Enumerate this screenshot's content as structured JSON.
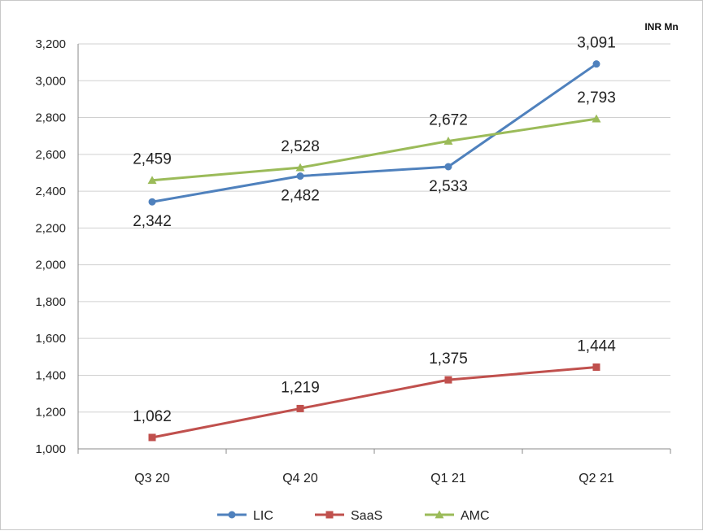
{
  "chart_data": {
    "type": "line",
    "unit_label": "INR Mn",
    "categories": [
      "Q3 20",
      "Q4 20",
      "Q1 21",
      "Q2 21"
    ],
    "ylim": [
      1000,
      3200
    ],
    "yticks": [
      1000,
      1200,
      1400,
      1600,
      1800,
      2000,
      2200,
      2400,
      2600,
      2800,
      3000,
      3200
    ],
    "ytick_labels": [
      "1,000",
      "1,200",
      "1,400",
      "1,600",
      "1,800",
      "2,000",
      "2,200",
      "2,400",
      "2,600",
      "2,800",
      "3,000",
      "3,200"
    ],
    "grid": true,
    "legend_position": "bottom",
    "series": [
      {
        "name": "LIC",
        "color": "#4f81bd",
        "marker": "circle",
        "values": [
          2342,
          2482,
          2533,
          3091
        ],
        "labels": [
          "2,342",
          "2,482",
          "2,533",
          "3,091"
        ],
        "label_pos": [
          "below",
          "below",
          "below",
          "above"
        ]
      },
      {
        "name": "SaaS",
        "color": "#c0504d",
        "marker": "square",
        "values": [
          1062,
          1219,
          1375,
          1444
        ],
        "labels": [
          "1,062",
          "1,219",
          "1,375",
          "1,444"
        ],
        "label_pos": [
          "above",
          "above",
          "above",
          "above"
        ]
      },
      {
        "name": "AMC",
        "color": "#9bbb59",
        "marker": "triangle",
        "values": [
          2459,
          2528,
          2672,
          2793
        ],
        "labels": [
          "2,459",
          "2,528",
          "2,672",
          "2,793"
        ],
        "label_pos": [
          "above",
          "above",
          "above",
          "above"
        ]
      }
    ]
  }
}
